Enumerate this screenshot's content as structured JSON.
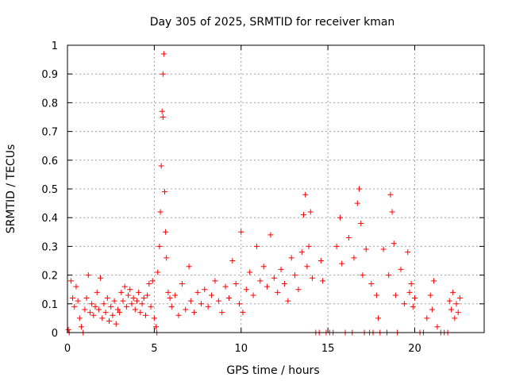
{
  "chart_data": {
    "type": "scatter",
    "title": "Day 305 of 2025, SRMTID for receiver kman",
    "xlabel": "GPS time / hours",
    "ylabel": "SRMTID / TECUs",
    "xlim": [
      0,
      24
    ],
    "ylim": [
      0,
      1
    ],
    "xticks": [
      0,
      5,
      10,
      15,
      20
    ],
    "yticks": [
      0,
      0.1,
      0.2,
      0.3,
      0.4,
      0.5,
      0.6,
      0.7,
      0.8,
      0.9,
      1
    ],
    "xtick_labels": [
      "0",
      "5",
      "10",
      "15",
      "20"
    ],
    "ytick_labels": [
      "0",
      "0.1",
      "0.2",
      "0.3",
      "0.4",
      "0.5",
      "0.6",
      "0.7",
      "0.8",
      "0.9",
      "1"
    ],
    "grid": true,
    "marker": "+",
    "colors": {
      "series": "#ff0000",
      "grid": "#a0a0a0",
      "axis": "#000000"
    },
    "series": [
      {
        "name": "SRMTID",
        "points": [
          [
            0.05,
            0.01
          ],
          [
            0.1,
            0.0
          ],
          [
            0.2,
            0.18
          ],
          [
            0.3,
            0.12
          ],
          [
            0.4,
            0.09
          ],
          [
            0.5,
            0.16
          ],
          [
            0.6,
            0.11
          ],
          [
            0.7,
            0.05
          ],
          [
            0.8,
            0.02
          ],
          [
            0.9,
            0.0
          ],
          [
            1.0,
            0.08
          ],
          [
            1.1,
            0.12
          ],
          [
            1.2,
            0.2
          ],
          [
            1.3,
            0.07
          ],
          [
            1.4,
            0.1
          ],
          [
            1.5,
            0.06
          ],
          [
            1.6,
            0.09
          ],
          [
            1.7,
            0.14
          ],
          [
            1.8,
            0.08
          ],
          [
            1.9,
            0.19
          ],
          [
            2.0,
            0.05
          ],
          [
            2.1,
            0.1
          ],
          [
            2.2,
            0.07
          ],
          [
            2.3,
            0.12
          ],
          [
            2.4,
            0.04
          ],
          [
            2.5,
            0.09
          ],
          [
            2.6,
            0.06
          ],
          [
            2.7,
            0.11
          ],
          [
            2.8,
            0.03
          ],
          [
            2.9,
            0.08
          ],
          [
            3.0,
            0.07
          ],
          [
            3.1,
            0.14
          ],
          [
            3.2,
            0.11
          ],
          [
            3.3,
            0.16
          ],
          [
            3.4,
            0.09
          ],
          [
            3.5,
            0.13
          ],
          [
            3.6,
            0.15
          ],
          [
            3.7,
            0.1
          ],
          [
            3.8,
            0.12
          ],
          [
            3.9,
            0.08
          ],
          [
            4.0,
            0.11
          ],
          [
            4.1,
            0.14
          ],
          [
            4.2,
            0.07
          ],
          [
            4.3,
            0.1
          ],
          [
            4.4,
            0.12
          ],
          [
            4.5,
            0.06
          ],
          [
            4.6,
            0.13
          ],
          [
            4.7,
            0.17
          ],
          [
            4.8,
            0.09
          ],
          [
            4.9,
            0.18
          ],
          [
            5.0,
            0.05
          ],
          [
            5.1,
            0.02
          ],
          [
            5.15,
            0.0
          ],
          [
            5.2,
            0.21
          ],
          [
            5.3,
            0.3
          ],
          [
            5.35,
            0.42
          ],
          [
            5.4,
            0.58
          ],
          [
            5.45,
            0.77
          ],
          [
            5.5,
            0.9
          ],
          [
            5.55,
            0.97
          ],
          [
            5.5,
            0.75
          ],
          [
            5.6,
            0.49
          ],
          [
            5.65,
            0.35
          ],
          [
            5.7,
            0.26
          ],
          [
            5.8,
            0.14
          ],
          [
            5.9,
            0.12
          ],
          [
            6.0,
            0.09
          ],
          [
            6.2,
            0.13
          ],
          [
            6.4,
            0.06
          ],
          [
            6.6,
            0.17
          ],
          [
            6.8,
            0.08
          ],
          [
            7.0,
            0.23
          ],
          [
            7.1,
            0.11
          ],
          [
            7.3,
            0.07
          ],
          [
            7.5,
            0.14
          ],
          [
            7.7,
            0.1
          ],
          [
            7.9,
            0.15
          ],
          [
            8.1,
            0.09
          ],
          [
            8.3,
            0.13
          ],
          [
            8.5,
            0.18
          ],
          [
            8.7,
            0.11
          ],
          [
            8.9,
            0.07
          ],
          [
            9.1,
            0.16
          ],
          [
            9.3,
            0.12
          ],
          [
            9.5,
            0.25
          ],
          [
            9.7,
            0.17
          ],
          [
            9.9,
            0.1
          ],
          [
            10.0,
            0.35
          ],
          [
            10.1,
            0.07
          ],
          [
            10.3,
            0.15
          ],
          [
            10.5,
            0.21
          ],
          [
            10.7,
            0.13
          ],
          [
            10.9,
            0.3
          ],
          [
            11.1,
            0.18
          ],
          [
            11.3,
            0.23
          ],
          [
            11.5,
            0.16
          ],
          [
            11.7,
            0.34
          ],
          [
            11.9,
            0.19
          ],
          [
            12.1,
            0.14
          ],
          [
            12.3,
            0.22
          ],
          [
            12.5,
            0.17
          ],
          [
            12.7,
            0.11
          ],
          [
            12.9,
            0.26
          ],
          [
            13.1,
            0.2
          ],
          [
            13.3,
            0.15
          ],
          [
            13.5,
            0.28
          ],
          [
            13.6,
            0.41
          ],
          [
            13.7,
            0.48
          ],
          [
            13.8,
            0.23
          ],
          [
            13.9,
            0.3
          ],
          [
            14.0,
            0.42
          ],
          [
            14.1,
            0.19
          ],
          [
            14.3,
            0.0
          ],
          [
            14.5,
            0.0
          ],
          [
            14.6,
            0.25
          ],
          [
            14.7,
            0.18
          ],
          [
            14.9,
            0.0
          ],
          [
            15.1,
            0.0
          ],
          [
            15.3,
            0.0
          ],
          [
            15.5,
            0.3
          ],
          [
            15.7,
            0.4
          ],
          [
            15.8,
            0.24
          ],
          [
            16.0,
            0.0
          ],
          [
            16.2,
            0.33
          ],
          [
            16.4,
            0.0
          ],
          [
            16.5,
            0.26
          ],
          [
            16.7,
            0.45
          ],
          [
            16.8,
            0.5
          ],
          [
            16.9,
            0.38
          ],
          [
            17.0,
            0.2
          ],
          [
            17.1,
            0.0
          ],
          [
            17.2,
            0.29
          ],
          [
            17.4,
            0.0
          ],
          [
            17.5,
            0.17
          ],
          [
            17.6,
            0.0
          ],
          [
            17.8,
            0.13
          ],
          [
            17.9,
            0.05
          ],
          [
            18.0,
            0.0
          ],
          [
            18.2,
            0.29
          ],
          [
            18.4,
            0.0
          ],
          [
            18.5,
            0.2
          ],
          [
            18.6,
            0.48
          ],
          [
            18.7,
            0.42
          ],
          [
            18.8,
            0.31
          ],
          [
            18.9,
            0.13
          ],
          [
            19.0,
            0.0
          ],
          [
            19.2,
            0.22
          ],
          [
            19.4,
            0.1
          ],
          [
            19.6,
            0.28
          ],
          [
            19.7,
            0.14
          ],
          [
            19.8,
            0.17
          ],
          [
            19.9,
            0.09
          ],
          [
            20.0,
            0.12
          ],
          [
            20.3,
            0.0
          ],
          [
            20.5,
            0.0
          ],
          [
            20.7,
            0.05
          ],
          [
            20.9,
            0.13
          ],
          [
            21.0,
            0.08
          ],
          [
            21.1,
            0.18
          ],
          [
            21.3,
            0.02
          ],
          [
            21.5,
            0.0
          ],
          [
            21.7,
            0.0
          ],
          [
            21.9,
            0.0
          ],
          [
            22.0,
            0.11
          ],
          [
            22.1,
            0.08
          ],
          [
            22.2,
            0.14
          ],
          [
            22.3,
            0.05
          ],
          [
            22.4,
            0.1
          ],
          [
            22.5,
            0.07
          ],
          [
            22.6,
            0.12
          ]
        ]
      }
    ]
  }
}
